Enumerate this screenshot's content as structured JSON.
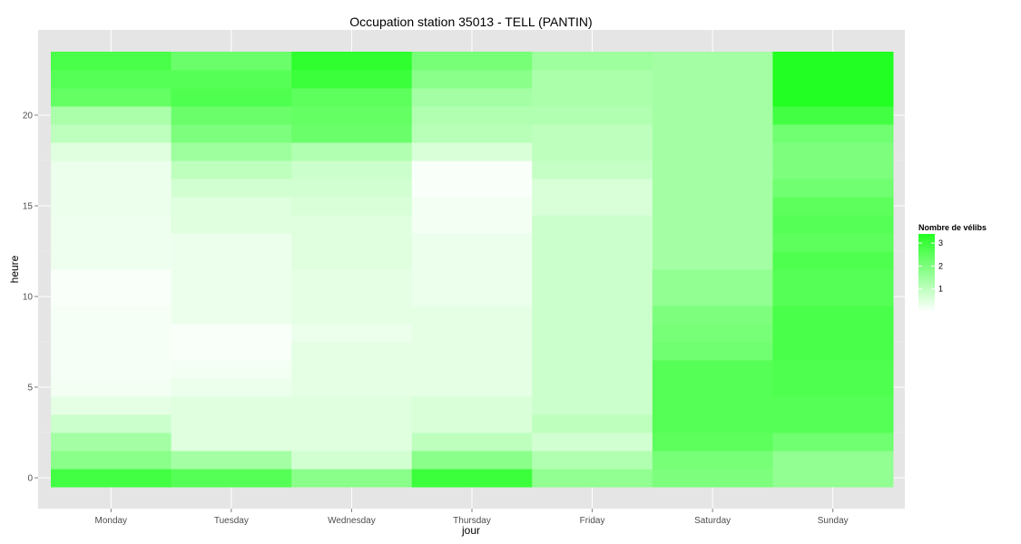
{
  "chart_data": {
    "type": "heatmap",
    "title": "Occupation station 35013 - TELL (PANTIN)",
    "xlabel": "jour",
    "ylabel": "heure",
    "categories": [
      "Monday",
      "Tuesday",
      "Wednesday",
      "Thursday",
      "Friday",
      "Saturday",
      "Sunday"
    ],
    "y_ticks": [
      0,
      5,
      10,
      15,
      20
    ],
    "y_tick_labels": [
      "0",
      "5",
      "10",
      "15",
      "20"
    ],
    "ylim": [
      -0.5,
      23.5
    ],
    "legend": {
      "title": "Nombre de vélibs",
      "ticks": [
        1,
        2,
        3
      ],
      "tick_labels": [
        "1",
        "2",
        "3"
      ],
      "min": 0,
      "max": 3.4,
      "low_color": "#ffffff",
      "high_color": "#22ff22",
      "placement": "right"
    },
    "background_color": "#e5e5e5",
    "grid": true,
    "values": {
      "Monday": [
        2.9,
        1.8,
        1.4,
        0.8,
        0.4,
        0.2,
        0.15,
        0.15,
        0.15,
        0.15,
        0.1,
        0.1,
        0.25,
        0.25,
        0.25,
        0.3,
        0.3,
        0.3,
        0.5,
        1.0,
        1.3,
        2.4,
        2.6,
        2.8
      ],
      "Tuesday": [
        2.6,
        1.4,
        0.5,
        0.5,
        0.5,
        0.3,
        0.2,
        0.1,
        0.1,
        0.3,
        0.3,
        0.3,
        0.3,
        0.3,
        0.5,
        0.5,
        0.7,
        1.0,
        1.5,
        2.0,
        2.3,
        2.7,
        2.6,
        2.3
      ],
      "Wednesday": [
        1.8,
        0.7,
        0.5,
        0.5,
        0.5,
        0.4,
        0.4,
        0.4,
        0.3,
        0.4,
        0.4,
        0.4,
        0.5,
        0.5,
        0.5,
        0.6,
        0.7,
        0.8,
        1.2,
        2.3,
        2.4,
        2.5,
        3.0,
        3.2
      ],
      "Thursday": [
        3.0,
        1.8,
        1.0,
        0.6,
        0.6,
        0.4,
        0.4,
        0.4,
        0.4,
        0.4,
        0.3,
        0.3,
        0.3,
        0.3,
        0.2,
        0.2,
        0.1,
        0.1,
        0.6,
        1.1,
        1.2,
        1.4,
        1.8,
        2.1
      ],
      "Friday": [
        1.7,
        1.2,
        0.7,
        1.0,
        0.8,
        0.8,
        0.8,
        0.8,
        0.8,
        0.8,
        0.8,
        0.8,
        0.8,
        0.8,
        0.8,
        0.6,
        0.6,
        0.9,
        1.0,
        1.0,
        1.2,
        1.3,
        1.3,
        1.5
      ],
      "Saturday": [
        2.0,
        2.1,
        2.5,
        2.6,
        2.6,
        2.6,
        2.6,
        2.2,
        2.1,
        2.0,
        1.7,
        1.7,
        1.4,
        1.4,
        1.4,
        1.4,
        1.4,
        1.4,
        1.4,
        1.4,
        1.4,
        1.4,
        1.4,
        1.4
      ],
      "Sunday": [
        1.7,
        1.7,
        2.2,
        2.6,
        2.6,
        2.7,
        2.7,
        2.8,
        2.8,
        2.8,
        2.6,
        2.6,
        2.7,
        2.5,
        2.6,
        2.5,
        2.2,
        2.0,
        2.0,
        2.2,
        2.9,
        3.4,
        3.4,
        3.4
      ]
    }
  }
}
